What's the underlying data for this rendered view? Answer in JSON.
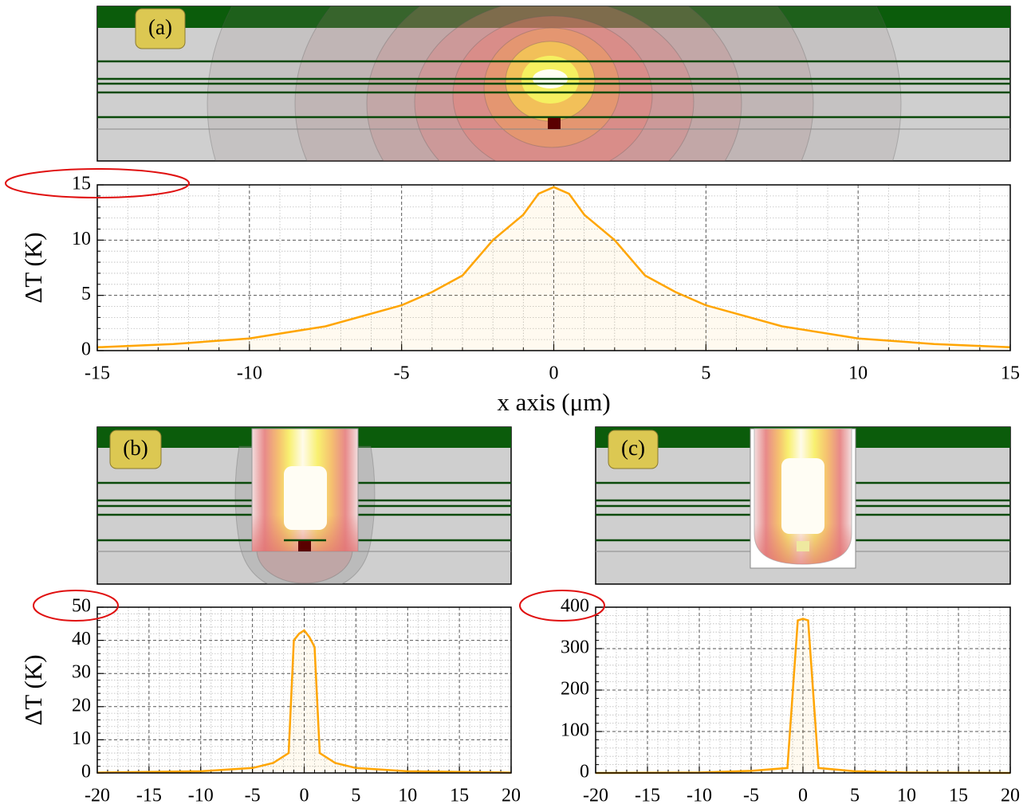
{
  "panels": [
    {
      "label": "(a)"
    },
    {
      "label": "(b)"
    },
    {
      "label": "(c)"
    }
  ],
  "chart_data": [
    {
      "type": "line",
      "ylabel": "ΔT (K)",
      "xlabel": "x axis (μm)",
      "x": [
        -15,
        -12.5,
        -10,
        -7.5,
        -5,
        -4,
        -3,
        -2,
        -1,
        -0.5,
        0,
        0.5,
        1,
        2,
        3,
        4,
        5,
        7.5,
        10,
        12.5,
        15
      ],
      "values": [
        0.3,
        0.6,
        1.1,
        2.2,
        4.1,
        5.3,
        6.8,
        10,
        12.3,
        14.2,
        14.8,
        14.2,
        12.3,
        10,
        6.8,
        5.3,
        4.1,
        2.2,
        1.1,
        0.6,
        0.3
      ],
      "color": "#ffa500",
      "xlim": [
        -15,
        15
      ],
      "ylim": [
        0,
        15
      ],
      "xticks": [
        -15,
        -10,
        -5,
        0,
        5,
        10,
        15
      ],
      "yticks": [
        0,
        5,
        10,
        15
      ],
      "grid": true
    },
    {
      "type": "line",
      "ylabel": "ΔT (K)",
      "x": [
        -20,
        -10,
        -5,
        -3,
        -1.5,
        -1,
        -0.5,
        0,
        0.5,
        1,
        1.5,
        3,
        5,
        10,
        20
      ],
      "values": [
        0.1,
        0.5,
        1.5,
        3,
        6,
        40,
        42,
        43,
        41,
        38,
        6,
        3,
        1.5,
        0.5,
        0.1
      ],
      "color": "#ffa500",
      "xlim": [
        -20,
        20
      ],
      "ylim": [
        0,
        50
      ],
      "xticks": [
        -20,
        -15,
        -10,
        -5,
        0,
        5,
        10,
        15,
        20
      ],
      "yticks": [
        0,
        10,
        20,
        30,
        40,
        50
      ],
      "grid": true
    },
    {
      "type": "line",
      "x": [
        -20,
        -10,
        -5,
        -1.5,
        -0.5,
        0,
        0.5,
        1.5,
        5,
        10,
        20
      ],
      "values": [
        0,
        1,
        5,
        12,
        368,
        372,
        368,
        12,
        4,
        1,
        0
      ],
      "color": "#ffa500",
      "xlim": [
        -20,
        20
      ],
      "ylim": [
        0,
        400
      ],
      "xticks": [
        -20,
        -15,
        -10,
        -5,
        0,
        5,
        10,
        15,
        20
      ],
      "yticks": [
        0,
        100,
        200,
        300,
        400
      ],
      "grid": true
    }
  ]
}
